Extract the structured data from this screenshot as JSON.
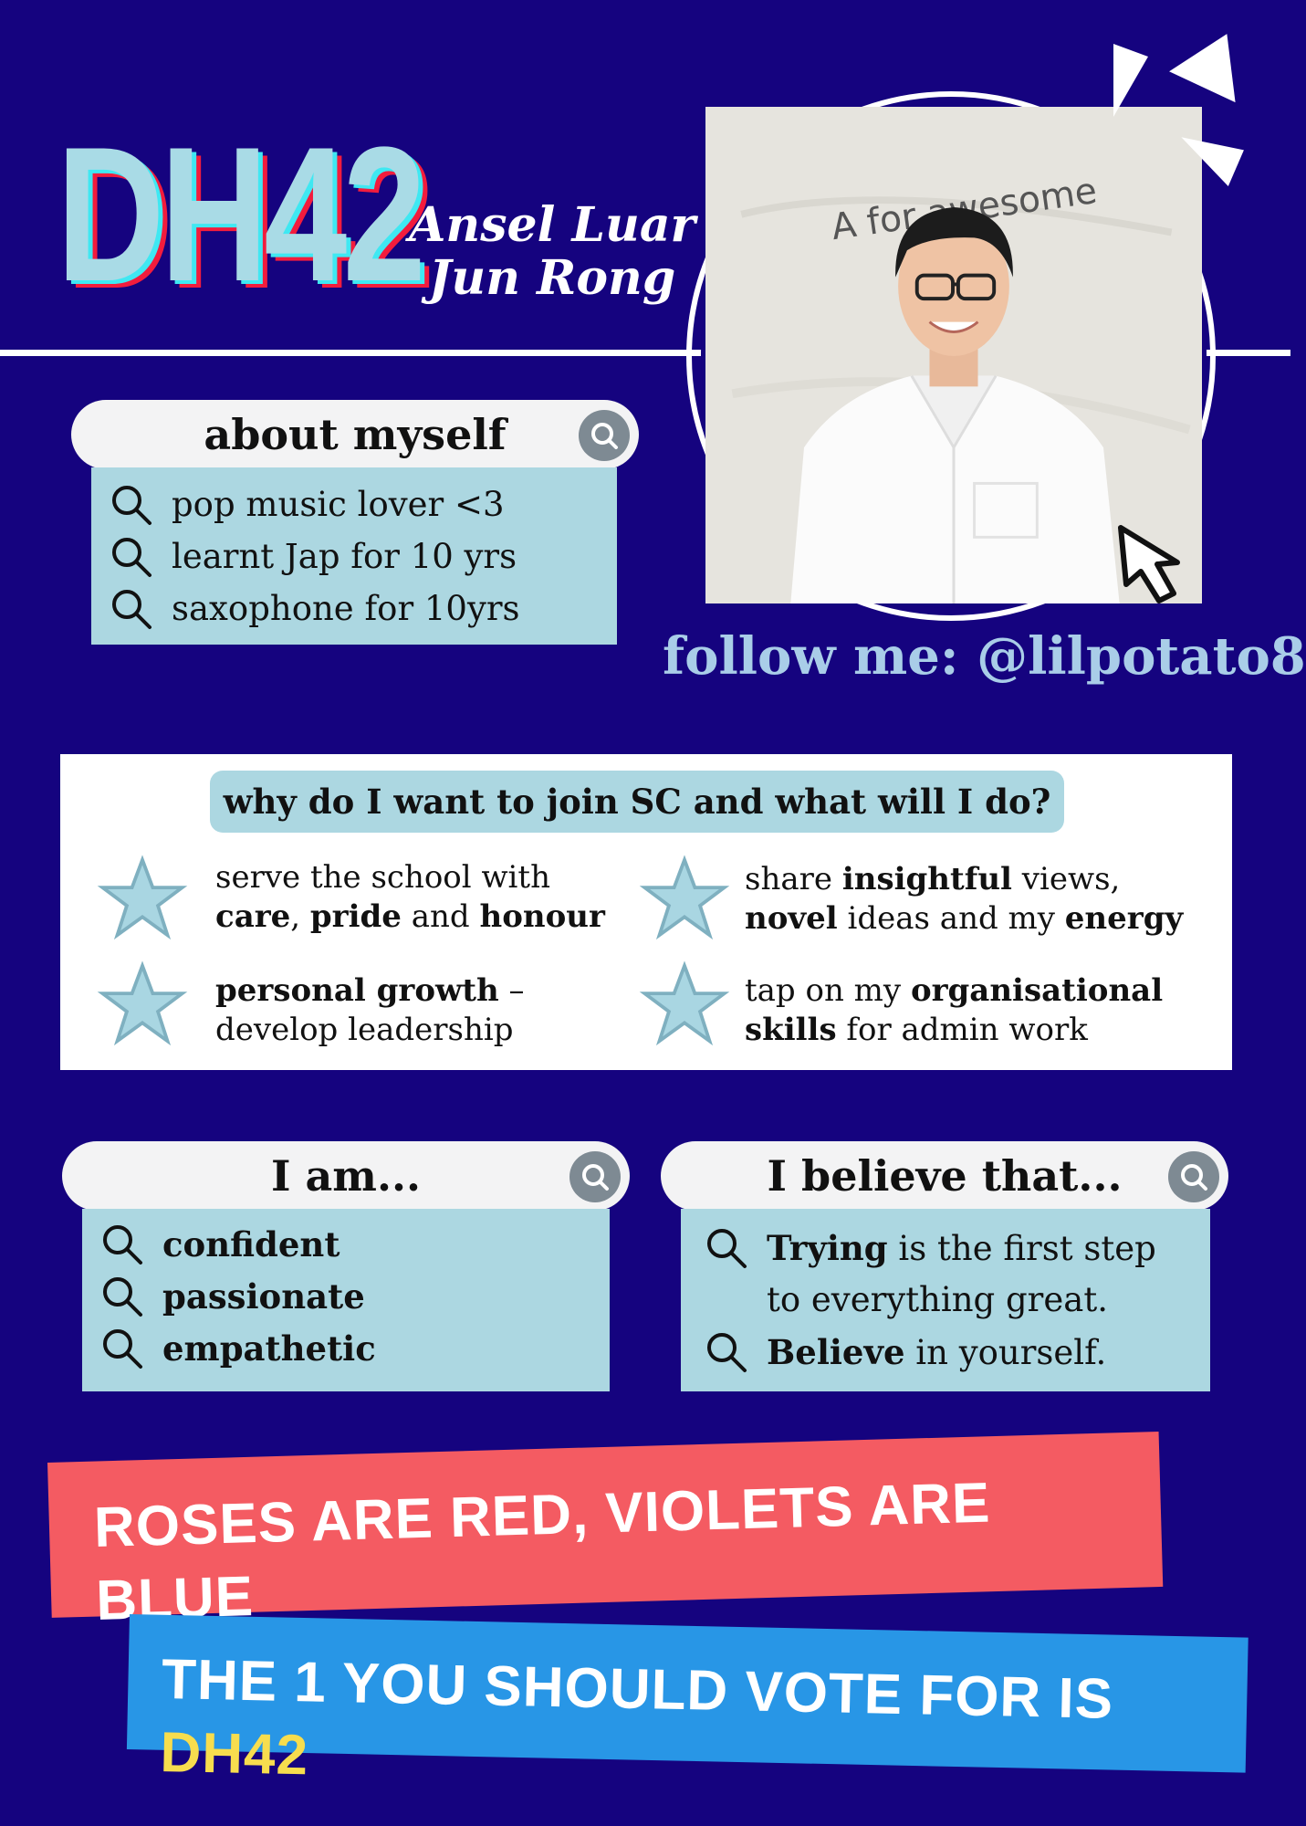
{
  "header": {
    "code": "DH42",
    "name_line1": "Ansel Luar",
    "name_line2": "Jun Rong"
  },
  "photo": {
    "whiteboard_text": "A for awesome"
  },
  "follow": "follow me: @lilpotato8",
  "about": {
    "title": "about myself",
    "items": [
      "pop music lover <3",
      "learnt Jap for 10 yrs",
      "saxophone for 10yrs"
    ]
  },
  "why": {
    "title": "why do I want to join SC and what will I do?",
    "p1": {
      "l1": "serve the school with",
      "b1": "care",
      "t1": ", ",
      "b2": "pride",
      "t2": " and ",
      "b3": "honour"
    },
    "p2": {
      "t1": "share ",
      "b1": "insightful",
      "t2": " views,",
      "b2": "novel",
      "t3": " ideas and my ",
      "b3": "energy"
    },
    "p3": {
      "b1": "personal growth",
      "t1": " –",
      "l2": "develop leadership"
    },
    "p4": {
      "t1": "tap on my ",
      "b1": "organisational",
      "b2": "skills",
      "t2": " for admin work"
    }
  },
  "iam": {
    "title": "I am...",
    "items": [
      "confident",
      "passionate",
      "empathetic"
    ]
  },
  "believe": {
    "title": "I believe that...",
    "i1_bold": "Trying",
    "i1_rest": " is the first step",
    "i1_line2": "to everything great.",
    "i2_bold": "Believe",
    "i2_rest": " in yourself."
  },
  "banner": {
    "line1": "ROSES ARE RED, VIOLETS ARE BLUE",
    "line2_main": "THE 1 YOU SHOULD VOTE FOR IS ",
    "line2_highlight": "DH42"
  },
  "colors": {
    "background": "#15037f",
    "panel": "#acd7e1",
    "banner_red": "#f45b62",
    "banner_blue": "#2896e6",
    "highlight_yellow": "#f7dd4e"
  }
}
